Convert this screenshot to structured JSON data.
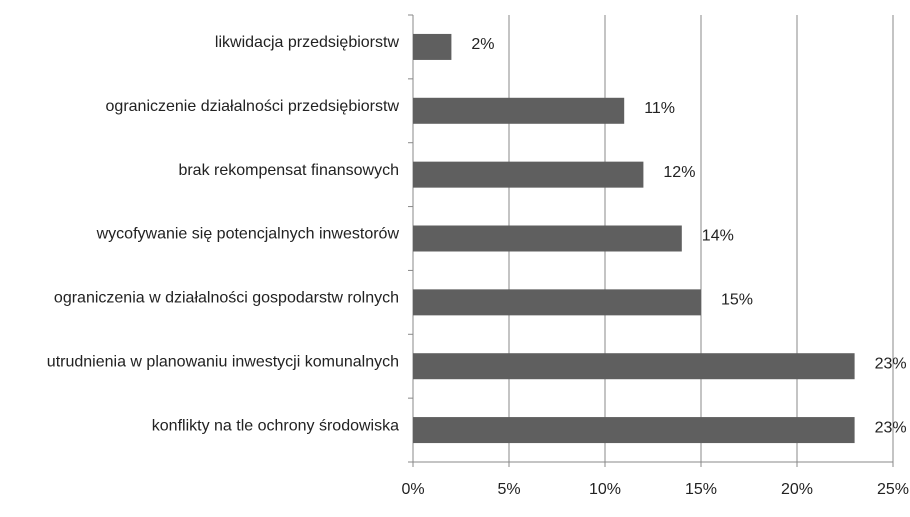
{
  "chart_data": {
    "type": "bar",
    "orientation": "horizontal",
    "categories": [
      "likwidacja przedsiębiorstw",
      "ograniczenie działalności przedsiębiorstw",
      "brak rekompensat finansowych",
      "wycofywanie się potencjalnych inwestorów",
      "ograniczenia w działalności gospodarstw rolnych",
      "utrudnienia w planowaniu inwestycji komunalnych",
      "konflikty na tle ochrony środowiska"
    ],
    "values": [
      2,
      11,
      12,
      14,
      15,
      23,
      23
    ],
    "value_labels": [
      "2%",
      "11%",
      "12%",
      "14%",
      "15%",
      "23%",
      "23%"
    ],
    "color": "#5f5f5f",
    "xlim": [
      0,
      25
    ],
    "xticks": [
      {
        "value": 0,
        "label": "0%"
      },
      {
        "value": 5,
        "label": "5%"
      },
      {
        "value": 10,
        "label": "10%"
      },
      {
        "value": 15,
        "label": "15%"
      },
      {
        "value": 20,
        "label": "20%"
      },
      {
        "value": 25,
        "label": "25%"
      }
    ],
    "grid": true
  }
}
